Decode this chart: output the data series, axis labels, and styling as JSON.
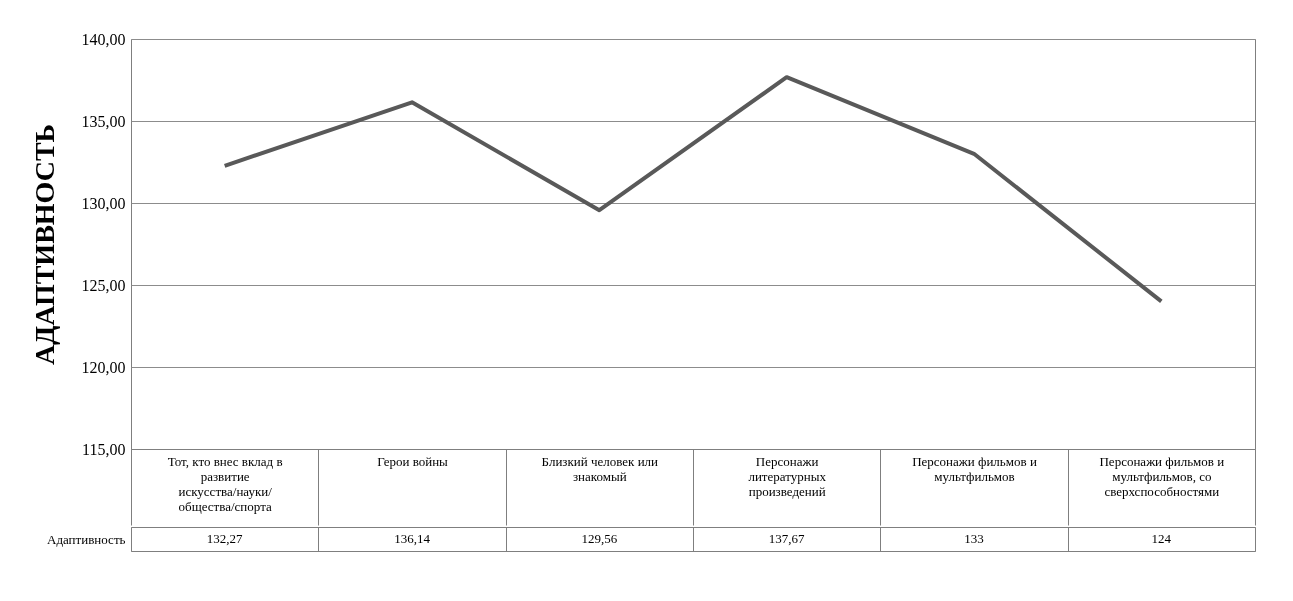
{
  "chart_data": {
    "type": "line",
    "ylabel": "АДАПТИВНОСТЬ",
    "categories": [
      "Тот, кто внес вклад в развитие искусства/науки/ общества/спорта",
      "Герои войны",
      "Близкий человек или знакомый",
      "Персонажи литературных произведений",
      "Персонажи фильмов и мультфильмов",
      "Персонажи фильмов и мультфильмов, со сверхспособностями"
    ],
    "series": [
      {
        "name": "Адаптивность",
        "color": "#595959",
        "values": [
          132.27,
          136.14,
          129.56,
          137.67,
          133,
          124
        ],
        "value_labels": [
          "132,27",
          "136,14",
          "129,56",
          "137,67",
          "133",
          "124"
        ]
      }
    ],
    "ylim": [
      115,
      140
    ],
    "yticks": [
      {
        "value": 115,
        "label": "115,00"
      },
      {
        "value": 120,
        "label": "120,00"
      },
      {
        "value": 125,
        "label": "125,00"
      },
      {
        "value": 130,
        "label": "130,00"
      },
      {
        "value": 135,
        "label": "135,00"
      },
      {
        "value": 140,
        "label": "140,00"
      }
    ],
    "grid": "y",
    "legend": false,
    "marker": "none",
    "line_style": "solid"
  }
}
